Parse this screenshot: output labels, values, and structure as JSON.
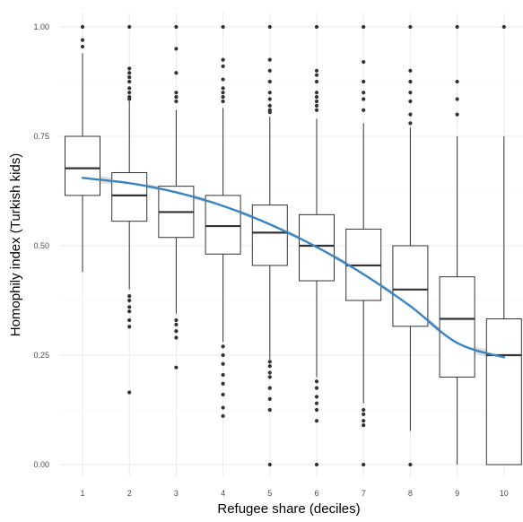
{
  "chart_data": {
    "type": "boxplot",
    "title": "",
    "xlabel": "Refugee share (deciles)",
    "ylabel": "Homophily index (Turkish kids)",
    "categories": [
      "1",
      "2",
      "3",
      "4",
      "5",
      "6",
      "7",
      "8",
      "9",
      "10"
    ],
    "ylim": [
      0,
      1
    ],
    "yticks": [
      0,
      0.25,
      0.5,
      0.75,
      1
    ],
    "ytick_labels": [
      "0.00",
      "0.25",
      "0.50",
      "0.75",
      "1.00"
    ],
    "grid": true,
    "boxes": [
      {
        "category": "1",
        "whisker_low": 0.44,
        "q1": 0.615,
        "median": 0.677,
        "q3": 0.75,
        "whisker_high": 0.94,
        "outliers": [
          1.0,
          0.97,
          0.955
        ]
      },
      {
        "category": "2",
        "whisker_low": 0.4,
        "q1": 0.556,
        "median": 0.615,
        "q3": 0.667,
        "whisker_high": 0.83,
        "outliers": [
          1.0,
          0.905,
          0.895,
          0.885,
          0.875,
          0.86,
          0.85,
          0.84,
          0.835,
          0.385,
          0.375,
          0.36,
          0.35,
          0.33,
          0.315,
          0.165
        ]
      },
      {
        "category": "3",
        "whisker_low": 0.345,
        "q1": 0.519,
        "median": 0.577,
        "q3": 0.636,
        "whisker_high": 0.81,
        "outliers": [
          1.0,
          0.95,
          0.895,
          0.85,
          0.84,
          0.83,
          0.33,
          0.32,
          0.305,
          0.29,
          0.222
        ]
      },
      {
        "category": "4",
        "whisker_low": 0.28,
        "q1": 0.481,
        "median": 0.545,
        "q3": 0.615,
        "whisker_high": 0.815,
        "outliers": [
          1.0,
          0.925,
          0.91,
          0.88,
          0.86,
          0.85,
          0.84,
          0.83,
          0.27,
          0.25,
          0.23,
          0.205,
          0.185,
          0.16,
          0.13,
          0.111
        ]
      },
      {
        "category": "5",
        "whisker_low": 0.24,
        "q1": 0.455,
        "median": 0.53,
        "q3": 0.593,
        "whisker_high": 0.795,
        "outliers": [
          1.0,
          0.925,
          0.9,
          0.875,
          0.85,
          0.835,
          0.82,
          0.81,
          0.805,
          0.235,
          0.225,
          0.21,
          0.2,
          0.175,
          0.15,
          0.125,
          0.0
        ]
      },
      {
        "category": "6",
        "whisker_low": 0.2,
        "q1": 0.42,
        "median": 0.5,
        "q3": 0.571,
        "whisker_high": 0.79,
        "outliers": [
          1.0,
          0.9,
          0.89,
          0.875,
          0.85,
          0.84,
          0.83,
          0.82,
          0.81,
          0.19,
          0.175,
          0.155,
          0.14,
          0.125,
          0.1,
          0.0
        ]
      },
      {
        "category": "7",
        "whisker_low": 0.14,
        "q1": 0.375,
        "median": 0.455,
        "q3": 0.538,
        "whisker_high": 0.78,
        "outliers": [
          1.0,
          0.92,
          0.875,
          0.85,
          0.835,
          0.81,
          0.125,
          0.115,
          0.1,
          0.09,
          0.0
        ]
      },
      {
        "category": "8",
        "whisker_low": 0.077,
        "q1": 0.316,
        "median": 0.4,
        "q3": 0.5,
        "whisker_high": 0.77,
        "outliers": [
          1.0,
          0.9,
          0.875,
          0.85,
          0.83,
          0.8,
          0.78,
          0.0
        ]
      },
      {
        "category": "9",
        "whisker_low": 0.0,
        "q1": 0.2,
        "median": 0.333,
        "q3": 0.429,
        "whisker_high": 0.75,
        "outliers": [
          1.0,
          0.875,
          0.835,
          0.8
        ]
      },
      {
        "category": "10",
        "whisker_low": 0.0,
        "q1": 0.0,
        "median": 0.25,
        "q3": 0.333,
        "whisker_high": 0.75,
        "outliers": [
          1.0
        ]
      }
    ],
    "trend_line": {
      "x": [
        1,
        2,
        3,
        4,
        5,
        6,
        7,
        8,
        9,
        10
      ],
      "y": [
        0.655,
        0.643,
        0.622,
        0.591,
        0.549,
        0.497,
        0.435,
        0.362,
        0.278,
        0.245
      ],
      "band_half_width": [
        0.01,
        0.006,
        0.005,
        0.005,
        0.005,
        0.005,
        0.005,
        0.006,
        0.007,
        0.01
      ]
    },
    "colors": {
      "trend": "#3a84bf",
      "band": "#c9c9c9",
      "box_stroke": "#333333",
      "outlier": "#333333",
      "grid_major": "#ebebeb",
      "grid_minor": "#f5f5f5"
    }
  }
}
